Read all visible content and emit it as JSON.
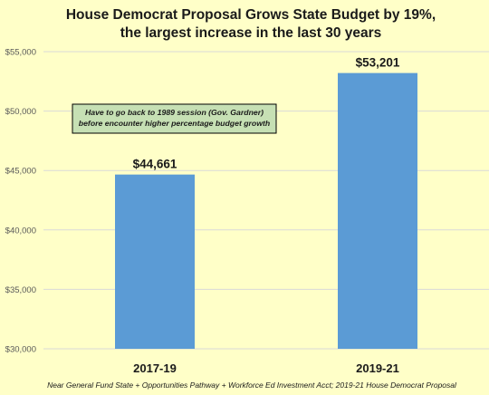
{
  "chart_data": {
    "type": "bar",
    "title": [
      "House Democrat Proposal Grows State Budget by 19%,",
      "the largest increase in the last 30 years"
    ],
    "categories": [
      "2017-19",
      "2019-21"
    ],
    "values": [
      44661,
      53201
    ],
    "data_labels": [
      "$44,661",
      "$53,201"
    ],
    "ylim": [
      30000,
      55000
    ],
    "yticks": [
      30000,
      35000,
      40000,
      45000,
      50000,
      55000
    ],
    "ytick_labels": [
      "$30,000",
      "$35,000",
      "$40,000",
      "$45,000",
      "$50,000",
      "$55,000"
    ],
    "grid": true,
    "xlabel": "",
    "ylabel": "",
    "annotation": [
      "Have to go back to 1989 session (Gov. Gardner)",
      "before encounter higher percentage budget growth"
    ],
    "footnote": "Near General Fund State + Opportunities Pathway + Workforce Ed Investment Acct;  2019-21 House Democrat Proposal",
    "colors": {
      "background": "#ffffc8",
      "bar": "#5b9bd5",
      "grid": "#d9d9d9",
      "annotation_fill": "#c6e0b4",
      "annotation_border": "#000000"
    }
  }
}
